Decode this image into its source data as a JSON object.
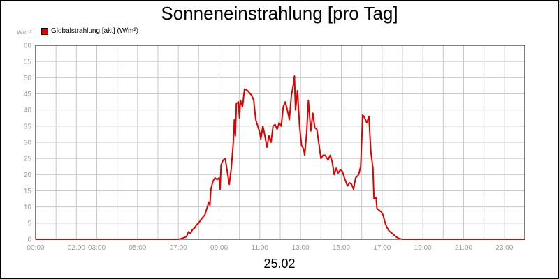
{
  "chart_data": {
    "type": "line",
    "title": "Sonneneinstrahlung [pro Tag]",
    "y_unit_label": "W/m²",
    "xlabel": "25.02",
    "ylim": [
      0,
      60
    ],
    "xlim": [
      0,
      24
    ],
    "y_ticks": [
      0,
      5,
      10,
      15,
      20,
      25,
      30,
      35,
      40,
      45,
      50,
      55,
      60
    ],
    "x_tick_labels": [
      {
        "t": 0,
        "label": "00:00"
      },
      {
        "t": 2,
        "label": "02:00"
      },
      {
        "t": 3,
        "label": "03:00"
      },
      {
        "t": 5,
        "label": "05:00"
      },
      {
        "t": 7,
        "label": "07:00"
      },
      {
        "t": 9,
        "label": "09:00"
      },
      {
        "t": 11,
        "label": "11:00"
      },
      {
        "t": 13,
        "label": "13:00"
      },
      {
        "t": 15,
        "label": "15:00"
      },
      {
        "t": 17,
        "label": "17:00"
      },
      {
        "t": 19,
        "label": "19:00"
      },
      {
        "t": 21,
        "label": "21:00"
      },
      {
        "t": 23,
        "label": "23:00"
      }
    ],
    "grid": true,
    "legend_position": "top-left",
    "series": [
      {
        "name": "Globalstrahlung [akt] (W/m²)",
        "color": "#e00000",
        "points": [
          [
            0,
            0
          ],
          [
            7.0,
            0
          ],
          [
            7.2,
            0.3
          ],
          [
            7.4,
            0.8
          ],
          [
            7.5,
            2.3
          ],
          [
            7.6,
            1.8
          ],
          [
            7.7,
            3.0
          ],
          [
            7.8,
            3.5
          ],
          [
            7.9,
            4.5
          ],
          [
            8.0,
            5.0
          ],
          [
            8.1,
            6.0
          ],
          [
            8.2,
            6.8
          ],
          [
            8.3,
            7.5
          ],
          [
            8.4,
            9.5
          ],
          [
            8.5,
            11.5
          ],
          [
            8.55,
            10.5
          ],
          [
            8.6,
            15.5
          ],
          [
            8.7,
            18.0
          ],
          [
            8.8,
            19.0
          ],
          [
            8.9,
            18.5
          ],
          [
            9.0,
            19.0
          ],
          [
            9.05,
            15.5
          ],
          [
            9.1,
            23.0
          ],
          [
            9.2,
            24.5
          ],
          [
            9.3,
            25.0
          ],
          [
            9.4,
            21.0
          ],
          [
            9.5,
            17.0
          ],
          [
            9.6,
            22.0
          ],
          [
            9.7,
            30.0
          ],
          [
            9.75,
            37.0
          ],
          [
            9.8,
            32.0
          ],
          [
            9.85,
            42.0
          ],
          [
            9.95,
            42.5
          ],
          [
            10.0,
            37.5
          ],
          [
            10.05,
            43.0
          ],
          [
            10.15,
            41.0
          ],
          [
            10.25,
            46.5
          ],
          [
            10.4,
            46.0
          ],
          [
            10.6,
            44.5
          ],
          [
            10.7,
            43.0
          ],
          [
            10.8,
            37.0
          ],
          [
            10.9,
            35.0
          ],
          [
            11.0,
            33.0
          ],
          [
            11.05,
            31.0
          ],
          [
            11.15,
            35.0
          ],
          [
            11.25,
            32.0
          ],
          [
            11.35,
            28.5
          ],
          [
            11.45,
            32.0
          ],
          [
            11.55,
            30.0
          ],
          [
            11.65,
            35.0
          ],
          [
            11.75,
            35.5
          ],
          [
            11.85,
            34.0
          ],
          [
            11.95,
            36.0
          ],
          [
            12.05,
            35.0
          ],
          [
            12.15,
            41.0
          ],
          [
            12.25,
            42.5
          ],
          [
            12.35,
            40.0
          ],
          [
            12.45,
            37.0
          ],
          [
            12.55,
            44.5
          ],
          [
            12.65,
            48.0
          ],
          [
            12.7,
            50.5
          ],
          [
            12.75,
            40.0
          ],
          [
            12.85,
            46.0
          ],
          [
            12.95,
            35.0
          ],
          [
            13.05,
            29.0
          ],
          [
            13.15,
            28.0
          ],
          [
            13.2,
            26.0
          ],
          [
            13.3,
            33.0
          ],
          [
            13.38,
            43.0
          ],
          [
            13.5,
            33.5
          ],
          [
            13.6,
            39.0
          ],
          [
            13.7,
            34.5
          ],
          [
            13.8,
            34.0
          ],
          [
            13.9,
            29.5
          ],
          [
            14.0,
            25.0
          ],
          [
            14.1,
            26.0
          ],
          [
            14.2,
            26.0
          ],
          [
            14.35,
            24.5
          ],
          [
            14.45,
            26.0
          ],
          [
            14.55,
            24.0
          ],
          [
            14.65,
            20.0
          ],
          [
            14.75,
            22.0
          ],
          [
            14.85,
            20.5
          ],
          [
            14.95,
            21.5
          ],
          [
            15.05,
            21.0
          ],
          [
            15.15,
            19.0
          ],
          [
            15.3,
            16.5
          ],
          [
            15.4,
            17.5
          ],
          [
            15.5,
            17.0
          ],
          [
            15.6,
            15.5
          ],
          [
            15.7,
            19.0
          ],
          [
            15.85,
            20.0
          ],
          [
            15.95,
            22.5
          ],
          [
            16.05,
            38.5
          ],
          [
            16.15,
            37.5
          ],
          [
            16.25,
            36.0
          ],
          [
            16.35,
            38.0
          ],
          [
            16.45,
            27.0
          ],
          [
            16.55,
            22.0
          ],
          [
            16.6,
            12.5
          ],
          [
            16.7,
            13.0
          ],
          [
            16.75,
            9.5
          ],
          [
            16.85,
            9.0
          ],
          [
            16.95,
            8.5
          ],
          [
            17.05,
            7.5
          ],
          [
            17.15,
            5.0
          ],
          [
            17.25,
            3.5
          ],
          [
            17.35,
            2.5
          ],
          [
            17.5,
            1.8
          ],
          [
            17.6,
            1.2
          ],
          [
            17.7,
            0.7
          ],
          [
            17.85,
            0.2
          ],
          [
            18.0,
            0
          ],
          [
            24.0,
            0
          ]
        ]
      }
    ]
  }
}
